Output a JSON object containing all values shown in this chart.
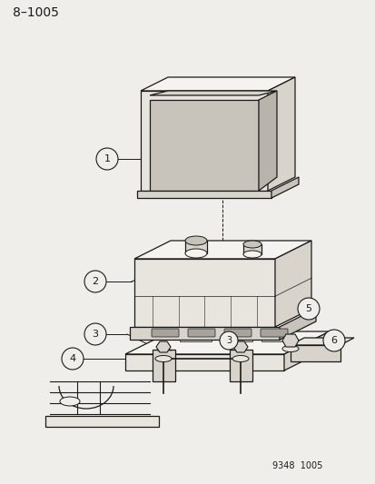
{
  "title": "8–1005",
  "footer": "9348  1005",
  "bg_color": "#f0eeea",
  "line_color": "#1a1a1a",
  "fill_light": "#e8e5df",
  "fill_mid": "#d8d4cc",
  "fill_dark": "#c8c4bc",
  "fill_white": "#f5f3ef",
  "title_fontsize": 10,
  "footer_fontsize": 7,
  "lw": 0.9
}
